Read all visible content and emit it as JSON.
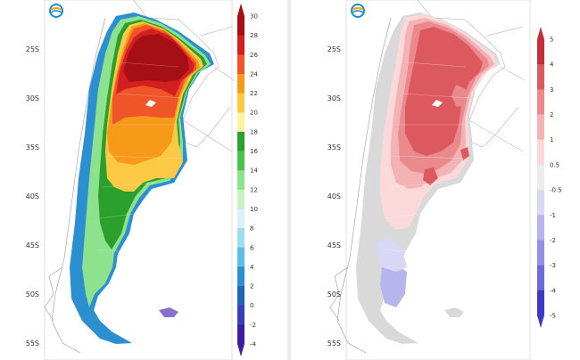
{
  "left_map": {
    "lat_labels": [
      "25S",
      "30S",
      "35S",
      "40S",
      "45S",
      "50S",
      "55S"
    ],
    "colorbar": {
      "ticks": [
        "30",
        "28",
        "26",
        "24",
        "22",
        "20",
        "18",
        "16",
        "14",
        "12",
        "10",
        "8",
        "6",
        "4",
        "2",
        "0",
        "-2",
        "-4"
      ],
      "colors": [
        "#a50f15",
        "#d21f1f",
        "#f0552a",
        "#f79a1a",
        "#fbc943",
        "#fff2a0",
        "#2ca02c",
        "#4cc24c",
        "#8ee28e",
        "#c9f3c4",
        "#d8f0f6",
        "#9fdcf0",
        "#5bbde8",
        "#2b8fd0",
        "#1f66b5",
        "#3a3fb5",
        "#3a1f9e"
      ]
    }
  },
  "right_map": {
    "lat_labels": [
      "25S",
      "30S",
      "35S",
      "40S",
      "45S",
      "50S",
      "55S"
    ],
    "colorbar": {
      "ticks": [
        "5",
        "4",
        "3",
        "2",
        "1",
        "0.5",
        "-0.5",
        "-1",
        "-2",
        "-3",
        "-4",
        "-5"
      ],
      "colors": [
        "#c2313a",
        "#dc5a5f",
        "#ea8a8d",
        "#f3b3b5",
        "#fbd8d9",
        "#ececec",
        "#d8d8f4",
        "#b6b5ee",
        "#9290e4",
        "#6d69d6",
        "#3e39c2"
      ]
    }
  },
  "logo_icon": "smn-logo-icon"
}
